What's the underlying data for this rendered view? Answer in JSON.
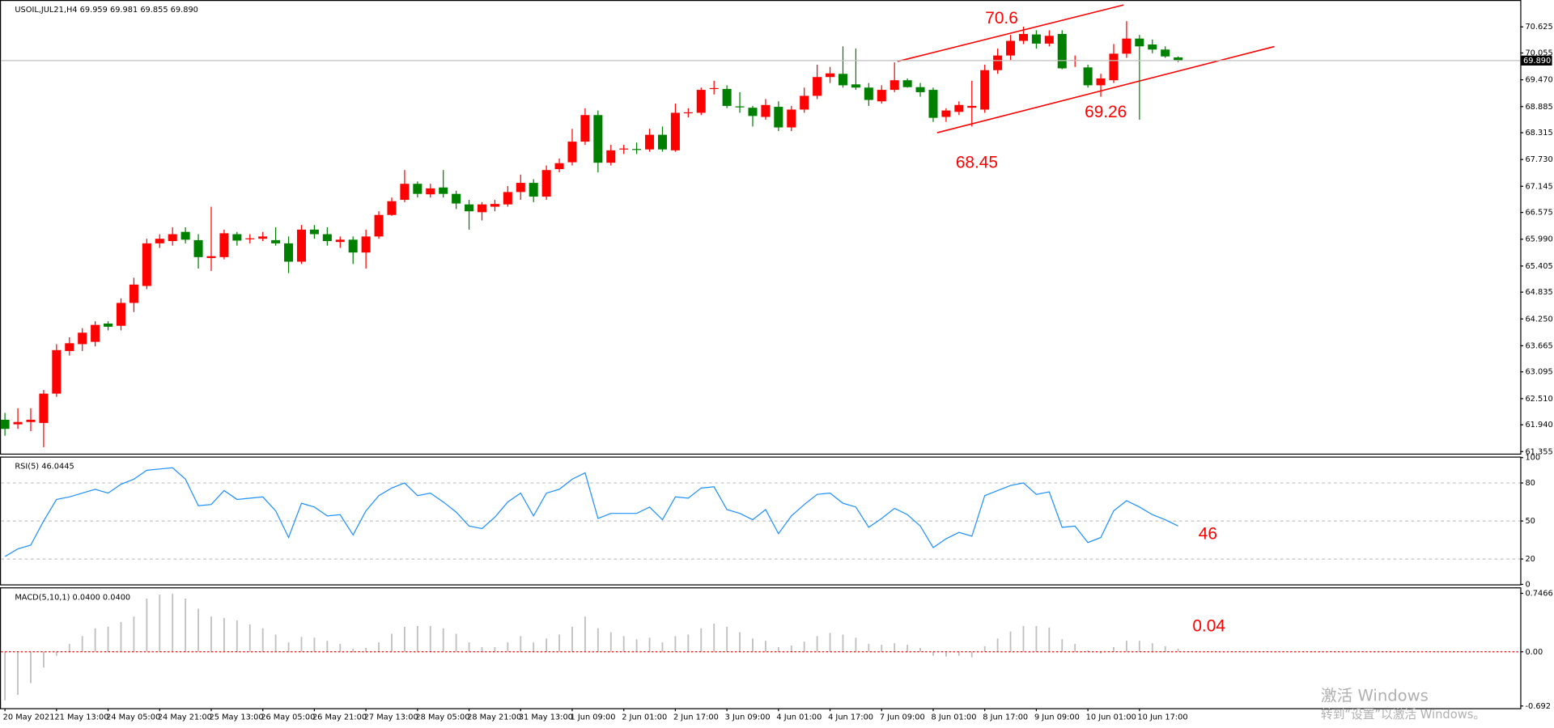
{
  "chart_data": [
    {
      "type": "candlestick",
      "title": "USOIL,JUL21,H4  69.959 69.981 69.855 69.890",
      "open": [
        62.05,
        61.95,
        62.0,
        61.98,
        62.62,
        63.55,
        63.7,
        63.75,
        64.15,
        64.1,
        64.6,
        64.97,
        65.9,
        65.95,
        66.15,
        65.97,
        65.58,
        65.6,
        66.1,
        65.99,
        66.0,
        65.97,
        65.9,
        65.5,
        66.2,
        66.1,
        65.93,
        65.98,
        65.7,
        66.05,
        66.52,
        66.85,
        67.2,
        66.97,
        67.12,
        66.98,
        66.75,
        66.58,
        66.7,
        66.75,
        67.02,
        67.22,
        66.92,
        67.52,
        67.67,
        68.12,
        68.7,
        67.66,
        67.95,
        67.96,
        67.95,
        68.27,
        67.93,
        68.74,
        68.75,
        69.27,
        69.27,
        68.89,
        68.86,
        68.66,
        68.88,
        68.43,
        68.82,
        69.12,
        69.53,
        69.6,
        69.37,
        69.3,
        69.0,
        69.25,
        69.46,
        69.31,
        69.25,
        68.66,
        68.77,
        68.86,
        68.82,
        69.68,
        70.0,
        70.32,
        70.46,
        70.26,
        70.47,
        69.88,
        69.74,
        69.35,
        69.46,
        70.04,
        70.37,
        70.24,
        70.13,
        69.959
      ],
      "high": [
        62.2,
        62.3,
        62.3,
        62.7,
        63.7,
        63.85,
        64.05,
        64.2,
        64.2,
        64.7,
        65.15,
        66.0,
        66.1,
        66.25,
        66.25,
        66.1,
        66.7,
        66.2,
        66.15,
        66.1,
        66.15,
        66.25,
        66.05,
        66.3,
        66.3,
        66.25,
        66.05,
        66.05,
        66.2,
        66.6,
        66.9,
        67.5,
        67.25,
        67.2,
        67.5,
        67.05,
        66.85,
        66.8,
        66.85,
        67.15,
        67.4,
        67.3,
        67.6,
        67.75,
        68.4,
        68.85,
        68.8,
        68.05,
        68.05,
        68.1,
        68.4,
        68.45,
        68.95,
        68.85,
        69.3,
        69.45,
        69.35,
        69.2,
        68.9,
        69.05,
        69.0,
        68.9,
        69.3,
        69.8,
        69.75,
        70.2,
        70.15,
        69.4,
        69.35,
        69.85,
        69.5,
        69.4,
        69.3,
        68.85,
        69.0,
        69.45,
        69.8,
        70.15,
        70.45,
        70.63,
        70.55,
        70.55,
        70.55,
        70.0,
        69.8,
        69.6,
        70.25,
        70.75,
        70.45,
        70.35,
        70.2,
        69.981
      ],
      "low": [
        61.7,
        61.85,
        61.8,
        61.45,
        62.55,
        63.45,
        63.55,
        63.65,
        64.0,
        64.0,
        64.4,
        64.9,
        65.8,
        65.85,
        65.9,
        65.35,
        65.3,
        65.55,
        65.85,
        65.9,
        65.95,
        65.85,
        65.25,
        65.45,
        66.0,
        65.85,
        65.8,
        65.45,
        65.35,
        66.0,
        66.5,
        66.8,
        66.9,
        66.9,
        66.9,
        66.65,
        66.2,
        66.4,
        66.6,
        66.7,
        66.85,
        66.8,
        66.85,
        67.45,
        67.6,
        68.05,
        67.45,
        67.6,
        67.85,
        67.85,
        67.9,
        67.9,
        67.9,
        68.65,
        68.7,
        69.15,
        68.85,
        68.75,
        68.45,
        68.6,
        68.35,
        68.35,
        68.75,
        69.05,
        69.4,
        69.3,
        69.25,
        68.9,
        68.95,
        69.2,
        69.3,
        69.1,
        68.55,
        68.55,
        68.7,
        68.45,
        68.75,
        69.6,
        69.9,
        70.25,
        70.15,
        70.2,
        69.7,
        69.75,
        69.3,
        69.1,
        69.4,
        69.95,
        68.6,
        70.05,
        69.95,
        69.855
      ],
      "close": [
        61.85,
        62.0,
        62.05,
        62.62,
        63.57,
        63.72,
        63.95,
        64.12,
        64.08,
        64.6,
        65.0,
        65.9,
        66.0,
        66.1,
        65.98,
        65.6,
        65.62,
        66.12,
        65.96,
        66.01,
        66.05,
        65.9,
        65.5,
        66.2,
        66.1,
        65.95,
        65.98,
        65.7,
        66.05,
        66.52,
        66.82,
        67.2,
        66.98,
        67.1,
        66.98,
        66.77,
        66.6,
        66.75,
        66.76,
        67.02,
        67.22,
        66.92,
        67.5,
        67.65,
        68.12,
        68.7,
        67.66,
        67.93,
        67.97,
        67.94,
        68.27,
        67.95,
        68.75,
        68.76,
        69.25,
        69.29,
        68.9,
        68.87,
        68.68,
        68.92,
        68.43,
        68.82,
        69.12,
        69.53,
        69.61,
        69.35,
        69.3,
        69.03,
        69.25,
        69.46,
        69.31,
        69.2,
        68.64,
        68.8,
        68.92,
        68.9,
        69.68,
        70.0,
        70.32,
        70.47,
        70.26,
        70.43,
        69.72,
        69.9,
        69.35,
        69.5,
        70.04,
        70.37,
        70.2,
        70.13,
        69.98,
        69.89
      ],
      "up_color": "#ff0000",
      "down_color": "#008000",
      "current_price": {
        "value": 69.89,
        "label": "69.890"
      },
      "annotations": [
        "70.6",
        "69.26",
        "68.45"
      ],
      "ylim": [
        61.31,
        71.19
      ],
      "yticks": [
        61.355,
        {
          "value": 61.94,
          "label": "61.940"
        },
        {
          "value": 62.51,
          "label": "62.510"
        },
        63.095,
        63.665,
        {
          "value": 64.25,
          "label": "64.250"
        },
        64.835,
        65.405,
        {
          "value": 65.99,
          "label": "65.990"
        },
        66.575,
        67.145,
        {
          "value": 67.73,
          "label": "67.730"
        },
        68.315,
        68.885,
        {
          "value": 69.47,
          "label": "69.470"
        },
        70.055,
        70.625
      ],
      "grid": false
    },
    {
      "type": "line",
      "title": "RSI(5) 46.0445",
      "color": "#1e90ff",
      "values": [
        22,
        28,
        31,
        50,
        67,
        69,
        72,
        75,
        72,
        79,
        83,
        90,
        91,
        92,
        83,
        62,
        63,
        74,
        67,
        68,
        69,
        58,
        37,
        64,
        61,
        54,
        55,
        39,
        58,
        70,
        76,
        80,
        70,
        72,
        65,
        57,
        46,
        44,
        53,
        65,
        72,
        54,
        72,
        75,
        83,
        88,
        52,
        56,
        56,
        56,
        61,
        51,
        69,
        68,
        76,
        77,
        59,
        56,
        51,
        59,
        40,
        54,
        63,
        71,
        72,
        64,
        61,
        45,
        52,
        60,
        55,
        46,
        29,
        36,
        41,
        38,
        70,
        74,
        78,
        80,
        71,
        73,
        45,
        46,
        33,
        37,
        58,
        66,
        61,
        55,
        51,
        46
      ],
      "annotations": [
        "46"
      ],
      "ylim": [
        0,
        100
      ],
      "yticks": [
        0,
        20,
        50,
        80,
        100
      ],
      "grid": true
    },
    {
      "type": "bar",
      "title": "MACD(5,10,1) 0.0400 0.0400",
      "color": "#c0c0c0",
      "zero_color": "#ff0000",
      "values": [
        -0.62,
        -0.55,
        -0.4,
        -0.2,
        -0.05,
        0.1,
        0.2,
        0.3,
        0.32,
        0.38,
        0.45,
        0.68,
        0.73,
        0.74,
        0.68,
        0.55,
        0.45,
        0.43,
        0.4,
        0.35,
        0.3,
        0.22,
        0.12,
        0.19,
        0.18,
        0.14,
        0.1,
        0.04,
        0.05,
        0.12,
        0.23,
        0.32,
        0.33,
        0.33,
        0.3,
        0.23,
        0.12,
        0.06,
        0.06,
        0.12,
        0.2,
        0.12,
        0.17,
        0.22,
        0.32,
        0.45,
        0.3,
        0.25,
        0.2,
        0.16,
        0.18,
        0.12,
        0.2,
        0.22,
        0.3,
        0.36,
        0.32,
        0.25,
        0.17,
        0.14,
        0.06,
        0.08,
        0.13,
        0.2,
        0.24,
        0.22,
        0.18,
        0.1,
        0.09,
        0.11,
        0.09,
        0.05,
        -0.05,
        -0.06,
        -0.05,
        -0.07,
        0.07,
        0.17,
        0.26,
        0.33,
        0.33,
        0.31,
        0.16,
        0.1,
        0.02,
        -0.02,
        0.06,
        0.14,
        0.14,
        0.11,
        0.07,
        0.04
      ],
      "annotations": [
        "0.04"
      ],
      "categories": [
        "20 May 2021",
        null,
        null,
        null,
        "21 May 13:00",
        null,
        null,
        null,
        "24 May 05:00",
        null,
        null,
        null,
        "24 May 21:00",
        null,
        null,
        null,
        "25 May 13:00",
        null,
        null,
        null,
        "26 May 05:00",
        null,
        null,
        null,
        "26 May 21:00",
        null,
        null,
        null,
        "27 May 13:00",
        null,
        null,
        null,
        "28 May 05:00",
        null,
        null,
        null,
        "28 May 21:00",
        null,
        null,
        null,
        "31 May 13:00",
        null,
        null,
        null,
        "1 Jun 09:00",
        null,
        null,
        null,
        "2 Jun 01:00",
        null,
        null,
        null,
        "2 Jun 17:00",
        null,
        null,
        null,
        "3 Jun 09:00",
        null,
        null,
        null,
        "4 Jun 01:00",
        null,
        null,
        null,
        "4 Jun 17:00",
        null,
        null,
        null,
        "7 Jun 09:00",
        null,
        null,
        null,
        "8 Jun 01:00",
        null,
        null,
        null,
        "8 Jun 17:00",
        null,
        null,
        null,
        "9 Jun 09:00",
        null,
        null,
        null,
        "10 Jun 01:00",
        null,
        null,
        null,
        "10 Jun 17:00",
        null,
        null,
        null
      ],
      "ylim": [
        -0.72,
        0.81
      ],
      "yticks": [
        -0.692,
        {
          "value": 0,
          "label": "0.00"
        },
        0.7466
      ],
      "grid": false
    }
  ],
  "watermark": [
    "激活 Windows",
    "转到“设置”以激活 Windows。"
  ]
}
